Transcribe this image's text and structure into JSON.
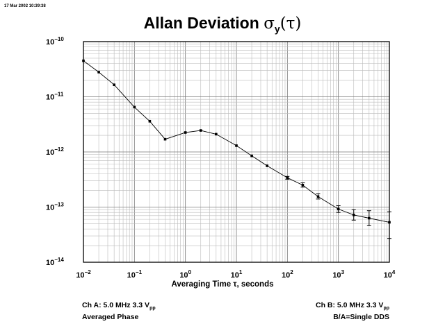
{
  "timestamp": "17 Mar 2002 10:39:38",
  "title_text": "Allan Deviation ",
  "title_sigma": "σ",
  "title_sub": "y",
  "title_arg": "(τ)",
  "xlabel": "Averaging Time τ, seconds",
  "notes": {
    "left_line1_prefix": "Ch A: 5.0 MHz 3.3 V",
    "left_line1_sub": "pp",
    "left_line2": "Averaged Phase",
    "right_line1_prefix": "Ch B: 5.0 MHz 3.3 V",
    "right_line1_sub": "pp",
    "right_line2": "B/A=Single DDS"
  },
  "chart_data": {
    "type": "line",
    "title": "Allan Deviation σy(τ)",
    "xlabel": "Averaging Time τ, seconds",
    "ylabel": "",
    "xscale": "log",
    "yscale": "log",
    "xlim": [
      0.01,
      10000
    ],
    "ylim": [
      1e-14,
      1e-10
    ],
    "grid": true,
    "x_ticks": [
      {
        "value": 0.01,
        "base": "10",
        "exp": "−2"
      },
      {
        "value": 0.1,
        "base": "10",
        "exp": "−1"
      },
      {
        "value": 1,
        "base": "10",
        "exp": "0"
      },
      {
        "value": 10,
        "base": "10",
        "exp": "1"
      },
      {
        "value": 100,
        "base": "10",
        "exp": "2"
      },
      {
        "value": 1000,
        "base": "10",
        "exp": "3"
      },
      {
        "value": 10000,
        "base": "10",
        "exp": "4"
      }
    ],
    "y_ticks": [
      {
        "value": 1e-10,
        "base": "10",
        "exp": "−10"
      },
      {
        "value": 1e-11,
        "base": "10",
        "exp": "−11"
      },
      {
        "value": 1e-12,
        "base": "10",
        "exp": "−12"
      },
      {
        "value": 1e-13,
        "base": "10",
        "exp": "−13"
      },
      {
        "value": 1e-14,
        "base": "10",
        "exp": "−14"
      }
    ],
    "series": [
      {
        "x": [
          0.01,
          0.02,
          0.04,
          0.1,
          0.2,
          0.4,
          1,
          2,
          4,
          10,
          20,
          40,
          100,
          200,
          400,
          1000,
          2000,
          4000,
          10000
        ],
        "y": [
          4.5e-11,
          2.8e-11,
          1.65e-11,
          6.5e-12,
          3.6e-12,
          1.7e-12,
          2.25e-12,
          2.45e-12,
          2.1e-12,
          1.3e-12,
          8.5e-13,
          5.6e-13,
          3.4e-13,
          2.5e-13,
          1.55e-13,
          9.2e-14,
          7.2e-14,
          6.3e-14,
          5.3e-14
        ],
        "y_low": [
          null,
          null,
          null,
          null,
          null,
          null,
          null,
          null,
          null,
          null,
          null,
          null,
          3.2e-13,
          2.3e-13,
          1.4e-13,
          8e-14,
          5.8e-14,
          4.6e-14,
          2.7e-14
        ],
        "y_high": [
          null,
          null,
          null,
          null,
          null,
          null,
          null,
          null,
          null,
          null,
          null,
          null,
          3.6e-13,
          2.75e-13,
          1.75e-13,
          1.06e-13,
          9e-14,
          8.6e-14,
          8.2e-14
        ]
      }
    ]
  }
}
